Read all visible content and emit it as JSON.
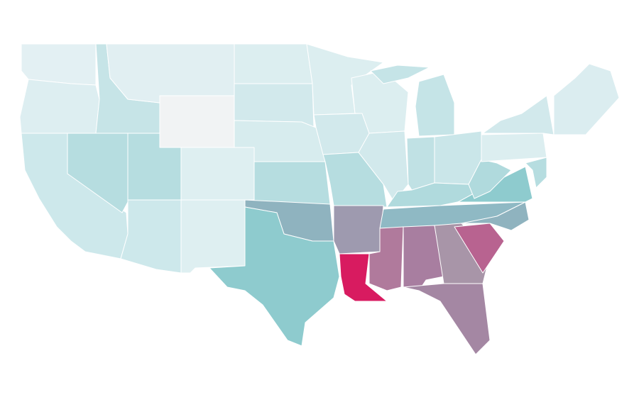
{
  "map": {
    "region_colors": [
      "#e3f0f3",
      "#ddeef1",
      "#cde8eb",
      "#b6dde0",
      "#c6e4e7",
      "#e1eff2",
      "#f1f3f4",
      "#b6dde0",
      "#deeff1",
      "#cde8eb",
      "#deeff1",
      "#dceef0",
      "#d2e9ec",
      "#d7ecee",
      "#b6dde0",
      "#8fb3bf",
      "#8ecbce",
      "#dceef0",
      "#d2e9ec",
      "#b6dde0",
      "#9e9aaf",
      "#d81b60",
      "#dceef0",
      "#d2e9ec",
      "#c5e4e7",
      "#c5e4e7",
      "#c0e1e4",
      "#cae6e9",
      "#b0dadd",
      "#8fb9c4",
      "#b07a9c",
      "#a87ea0",
      "#a895a8",
      "#a487a3",
      "#b86390",
      "#8fb3bf",
      "#8ecbce",
      "#b0dadd",
      "#dceef0",
      "#d2e9ec",
      "#dbedf0",
      "#b6dde0"
    ]
  }
}
